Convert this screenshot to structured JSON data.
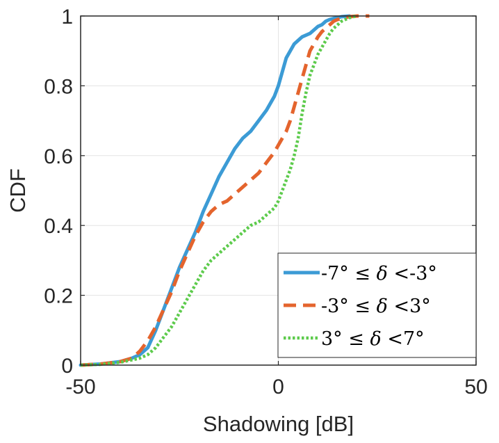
{
  "chart_data": {
    "type": "line",
    "xlabel": "Shadowing [dB]",
    "ylabel": "CDF",
    "xlim": [
      -50,
      50
    ],
    "ylim": [
      0,
      1
    ],
    "xticks": [
      -50,
      0,
      50
    ],
    "yticks": [
      0,
      0.2,
      0.4,
      0.6,
      0.8,
      1
    ],
    "xtick_labels": [
      "-50",
      "0",
      "50"
    ],
    "ytick_labels": [
      "0",
      "0.2",
      "0.4",
      "0.6",
      "0.8",
      "1"
    ],
    "grid": true,
    "legend_position": "bottom-right",
    "series": [
      {
        "name": "-7° ≤ δ <-3°",
        "color": "#3c9bd5",
        "style": "solid",
        "x": [
          -50,
          -45,
          -40,
          -37,
          -35,
          -33,
          -31,
          -29,
          -27,
          -25,
          -23,
          -21,
          -19,
          -17,
          -15,
          -13,
          -11,
          -9,
          -7,
          -5,
          -3,
          -1,
          0,
          1,
          2,
          3,
          4,
          5,
          6,
          7,
          8,
          9,
          10,
          11,
          12,
          13,
          14,
          15,
          16,
          17,
          18
        ],
        "y": [
          0,
          0.003,
          0.01,
          0.02,
          0.03,
          0.05,
          0.1,
          0.16,
          0.22,
          0.28,
          0.33,
          0.38,
          0.44,
          0.49,
          0.54,
          0.58,
          0.62,
          0.65,
          0.67,
          0.7,
          0.73,
          0.77,
          0.8,
          0.84,
          0.88,
          0.9,
          0.92,
          0.93,
          0.94,
          0.945,
          0.95,
          0.96,
          0.97,
          0.975,
          0.985,
          0.99,
          0.993,
          0.995,
          0.998,
          0.999,
          1.0
        ]
      },
      {
        "name": "-3° ≤ δ <3°",
        "color": "#e4642d",
        "style": "dashed",
        "x": [
          -50,
          -45,
          -40,
          -37,
          -35,
          -33,
          -31,
          -29,
          -27,
          -25,
          -23,
          -21,
          -19,
          -17,
          -15,
          -13,
          -11,
          -9,
          -7,
          -5,
          -3,
          -1,
          0,
          1,
          2,
          3,
          4,
          5,
          6,
          7,
          8,
          9,
          10,
          11,
          12,
          13,
          14,
          15,
          16,
          17,
          18,
          19,
          20,
          21,
          22,
          23
        ],
        "y": [
          0,
          0.003,
          0.01,
          0.02,
          0.04,
          0.07,
          0.11,
          0.16,
          0.21,
          0.27,
          0.32,
          0.37,
          0.41,
          0.44,
          0.46,
          0.47,
          0.49,
          0.51,
          0.53,
          0.55,
          0.58,
          0.61,
          0.63,
          0.65,
          0.67,
          0.7,
          0.74,
          0.78,
          0.82,
          0.86,
          0.9,
          0.92,
          0.94,
          0.955,
          0.965,
          0.975,
          0.985,
          0.99,
          0.993,
          0.996,
          0.998,
          0.999,
          1.0,
          1.0,
          1.0,
          1.0
        ]
      },
      {
        "name": "3° ≤ δ <7°",
        "color": "#5dcb4c",
        "style": "dotted",
        "x": [
          -50,
          -45,
          -40,
          -37,
          -35,
          -33,
          -31,
          -29,
          -27,
          -25,
          -23,
          -21,
          -19,
          -17,
          -15,
          -13,
          -11,
          -9,
          -7,
          -5,
          -3,
          -1,
          0,
          1,
          2,
          3,
          4,
          5,
          6,
          7,
          8,
          9,
          10,
          11,
          12,
          13,
          14,
          15,
          16,
          17,
          18,
          19,
          20
        ],
        "y": [
          0,
          0.002,
          0.008,
          0.015,
          0.02,
          0.03,
          0.05,
          0.08,
          0.11,
          0.15,
          0.19,
          0.23,
          0.27,
          0.3,
          0.32,
          0.34,
          0.36,
          0.38,
          0.4,
          0.41,
          0.43,
          0.45,
          0.47,
          0.5,
          0.53,
          0.56,
          0.6,
          0.65,
          0.72,
          0.78,
          0.83,
          0.86,
          0.89,
          0.91,
          0.93,
          0.95,
          0.965,
          0.975,
          0.985,
          0.99,
          0.995,
          0.998,
          1.0
        ]
      }
    ]
  },
  "legend": {
    "entries": [
      {
        "a": "-7°",
        "rel": "≤",
        "sym": "δ",
        "op": "<",
        "b": "-3°"
      },
      {
        "a": "-3°",
        "rel": "≤",
        "sym": "δ",
        "op": "<",
        "b": "3°"
      },
      {
        "a": "3°",
        "rel": "≤",
        "sym": "δ",
        "op": "<",
        "b": "7°"
      }
    ]
  }
}
